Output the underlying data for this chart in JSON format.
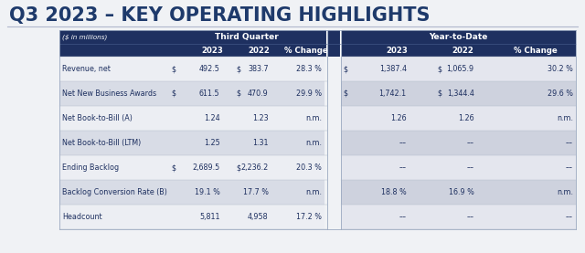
{
  "title": "Q3 2023 – KEY OPERATING HIGHLIGHTS",
  "title_color": "#1e3a6b",
  "title_fontsize": 15,
  "header_bg": "#1e3060",
  "header_text_color": "#ffffff",
  "col_label": "($ in millions)",
  "tq_header": "Third Quarter",
  "ytd_header": "Year-to-Date",
  "sub_headers": [
    "2023",
    "2022",
    "% Change",
    "2023",
    "2022",
    "% Change"
  ],
  "rows": [
    {
      "label": "Revenue, net",
      "tq_dollar": true,
      "tq_2023": "492.5",
      "tq_2022": "383.7",
      "tq_pct": "28.3 %",
      "ytd_dollar": true,
      "ytd_2023": "1,387.4",
      "ytd_2022": "1,065.9",
      "ytd_pct": "30.2 %"
    },
    {
      "label": "Net New Business Awards",
      "tq_dollar": true,
      "tq_2023": "611.5",
      "tq_2022": "470.9",
      "tq_pct": "29.9 %",
      "ytd_dollar": true,
      "ytd_2023": "1,742.1",
      "ytd_2022": "1,344.4",
      "ytd_pct": "29.6 %"
    },
    {
      "label": "Net Book-to-Bill ²ᴬᴱ",
      "label_plain": "Net Book-to-Bill (A)",
      "tq_dollar": false,
      "tq_2023": "1.24",
      "tq_2022": "1.23",
      "tq_pct": "n.m.",
      "ytd_dollar": false,
      "ytd_2023": "1.26",
      "ytd_2022": "1.26",
      "ytd_pct": "n.m."
    },
    {
      "label": "Net Book-to-Bill (LTM)",
      "label_plain": "Net Book-to-Bill (LTM)",
      "tq_dollar": false,
      "tq_2023": "1.25",
      "tq_2022": "1.31",
      "tq_pct": "n.m.",
      "ytd_dollar": false,
      "ytd_2023": "––",
      "ytd_2022": "––",
      "ytd_pct": "––"
    },
    {
      "label": "Ending Backlog",
      "label_plain": "Ending Backlog",
      "tq_dollar": true,
      "tq_2023": "2,689.5",
      "tq_2022": "2,236.2",
      "tq_pct": "20.3 %",
      "ytd_dollar": false,
      "ytd_2023": "––",
      "ytd_2022": "––",
      "ytd_pct": "––"
    },
    {
      "label": "Backlog Conversion Rate ᴮᴮ",
      "label_plain": "Backlog Conversion Rate (B)",
      "tq_dollar": false,
      "tq_2023": "19.1 %",
      "tq_2022": "17.7 %",
      "tq_pct": "n.m.",
      "ytd_dollar": false,
      "ytd_2023": "18.8 %",
      "ytd_2022": "16.9 %",
      "ytd_pct": "n.m."
    },
    {
      "label": "Headcount",
      "label_plain": "Headcount",
      "tq_dollar": false,
      "tq_2023": "5,811",
      "tq_2022": "4,958",
      "tq_pct": "17.2 %",
      "ytd_dollar": false,
      "ytd_2023": "––",
      "ytd_2022": "––",
      "ytd_pct": "––"
    }
  ],
  "bg_color": "#f0f2f5",
  "table_bg": "#ffffff",
  "row_light": "#e8eaef",
  "row_dark_tq": "#d4d8e2",
  "row_light_ytd": "#dde0e8",
  "row_dark_ytd": "#c8ccd8",
  "figure_width": 6.4,
  "figure_height": 2.77,
  "dpi": 100
}
